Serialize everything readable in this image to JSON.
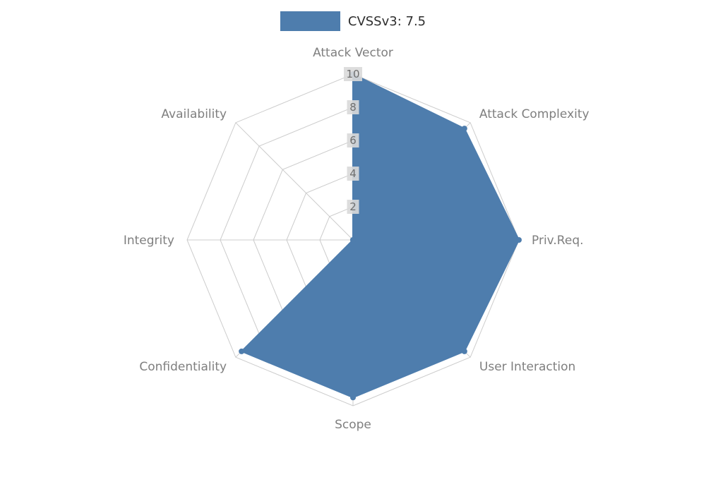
{
  "legend": {
    "label": "CVSSv3: 7.5"
  },
  "chart_data": {
    "type": "radar",
    "title": "CVSSv3: 7.5",
    "legend_position": "top-center",
    "grid": true,
    "axes": [
      "Attack Vector",
      "Attack Complexity",
      "Priv.Req.",
      "User Interaction",
      "Scope",
      "Confidentiality",
      "Integrity",
      "Availability"
    ],
    "values": [
      10,
      9.5,
      10,
      9.5,
      9.5,
      9.5,
      0,
      0
    ],
    "ticks": [
      2,
      4,
      6,
      8,
      10
    ],
    "rmax": 10,
    "colors": {
      "series": "#4e7dad",
      "grid": "#cccccc",
      "label": "#7f7f7f",
      "tick_text": "#6e6e6e",
      "tick_bg": "#d9d9d9",
      "legend_text": "#2e2e2e",
      "background": "#ffffff"
    }
  }
}
